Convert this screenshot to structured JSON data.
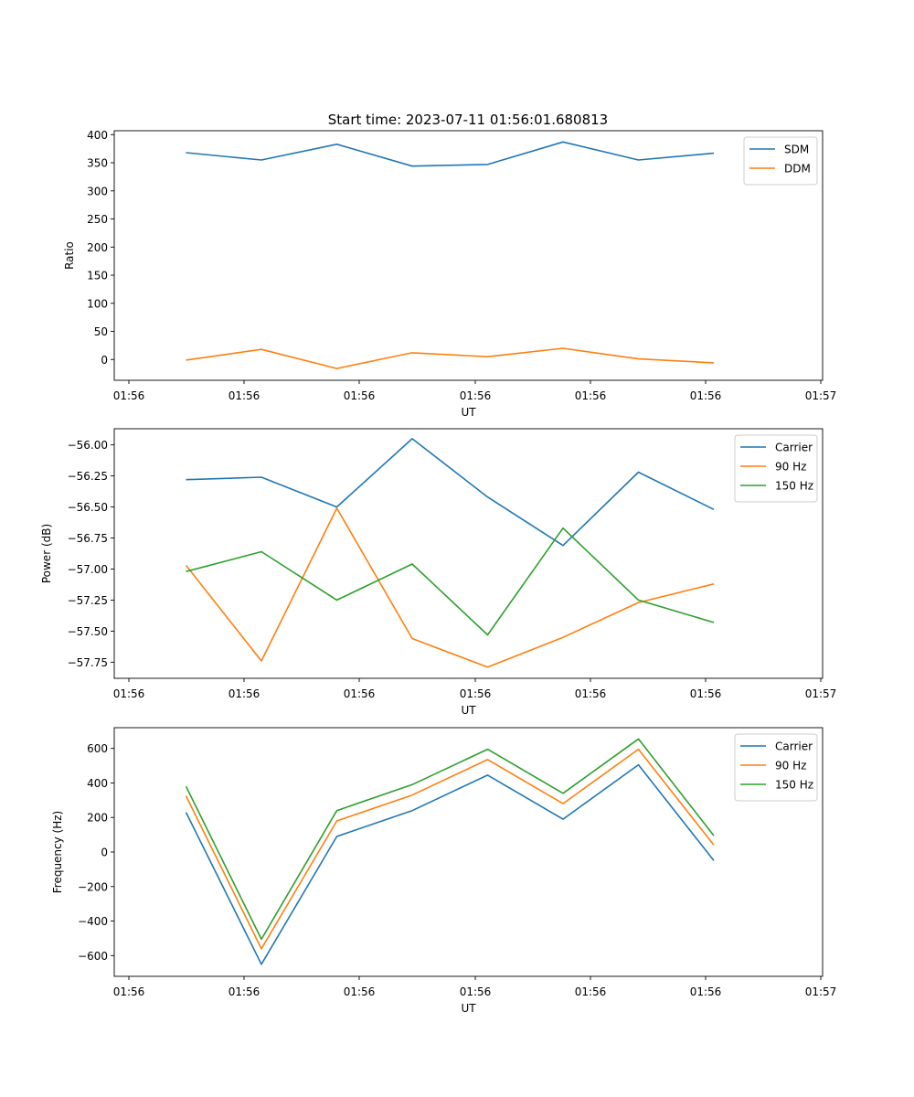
{
  "figure_title": "Start time: 2023-07-11 01:56:01.680813",
  "chart_data": [
    {
      "type": "line",
      "ylabel": "Ratio",
      "xlabel": "UT",
      "xticks": [
        "01:56",
        "01:56",
        "01:56",
        "01:56",
        "01:56",
        "01:56",
        "01:56"
      ],
      "xtick_last": "01:57",
      "yticks": [
        "0",
        "50",
        "100",
        "150",
        "200",
        "250",
        "300",
        "350",
        "400"
      ],
      "ylim": [
        -37,
        407
      ],
      "ytick_values": [
        0,
        50,
        100,
        150,
        200,
        250,
        300,
        350,
        400
      ],
      "x": [
        1,
        2,
        3,
        4,
        5,
        6,
        7,
        8
      ],
      "legend_position": "top-right",
      "series": [
        {
          "name": "SDM",
          "color": "#1f77b4",
          "values": [
            368,
            355,
            383,
            344,
            347,
            387,
            355,
            367
          ]
        },
        {
          "name": "DDM",
          "color": "#ff7f0e",
          "values": [
            -1,
            18,
            -16,
            12,
            5,
            20,
            1,
            -6
          ]
        }
      ]
    },
    {
      "type": "line",
      "ylabel": "Power (dB)",
      "xlabel": "UT",
      "xticks": [
        "01:56",
        "01:56",
        "01:56",
        "01:56",
        "01:56",
        "01:56",
        "01:56"
      ],
      "xtick_last": "01:57",
      "yticks": [
        "−57.75",
        "−57.50",
        "−57.25",
        "−57.00",
        "−56.75",
        "−56.50",
        "−56.25",
        "−56.00"
      ],
      "ytick_values": [
        -57.75,
        -57.5,
        -57.25,
        -57.0,
        -56.75,
        -56.5,
        -56.25,
        -56.0
      ],
      "ylim": [
        -57.88,
        -55.87
      ],
      "x": [
        1,
        2,
        3,
        4,
        5,
        6,
        7,
        8
      ],
      "legend_position": "top-right",
      "series": [
        {
          "name": "Carrier",
          "color": "#1f77b4",
          "values": [
            -56.28,
            -56.26,
            -56.5,
            -55.95,
            -56.42,
            -56.81,
            -56.22,
            -56.52
          ]
        },
        {
          "name": "90 Hz",
          "color": "#ff7f0e",
          "values": [
            -56.97,
            -57.74,
            -56.51,
            -57.56,
            -57.79,
            -57.55,
            -57.27,
            -57.12
          ]
        },
        {
          "name": "150 Hz",
          "color": "#2ca02c",
          "values": [
            -57.02,
            -56.86,
            -57.25,
            -56.96,
            -57.53,
            -56.67,
            -57.25,
            -57.43
          ]
        }
      ]
    },
    {
      "type": "line",
      "ylabel": "Frequency (Hz)",
      "xlabel": "UT",
      "xticks": [
        "01:56",
        "01:56",
        "01:56",
        "01:56",
        "01:56",
        "01:56",
        "01:56"
      ],
      "xtick_last": "01:57",
      "yticks": [
        "−600",
        "−400",
        "−200",
        "0",
        "200",
        "400",
        "600"
      ],
      "ytick_values": [
        -600,
        -400,
        -200,
        0,
        200,
        400,
        600
      ],
      "ylim": [
        -720,
        720
      ],
      "x": [
        1,
        2,
        3,
        4,
        5,
        6,
        7,
        8
      ],
      "legend_position": "top-right",
      "series": [
        {
          "name": "Carrier",
          "color": "#1f77b4",
          "values": [
            230,
            -650,
            90,
            240,
            445,
            190,
            505,
            -50
          ]
        },
        {
          "name": "90 Hz",
          "color": "#ff7f0e",
          "values": [
            325,
            -560,
            180,
            330,
            535,
            280,
            595,
            40
          ]
        },
        {
          "name": "150 Hz",
          "color": "#2ca02c",
          "values": [
            380,
            -505,
            240,
            390,
            595,
            340,
            655,
            95
          ]
        }
      ]
    }
  ]
}
